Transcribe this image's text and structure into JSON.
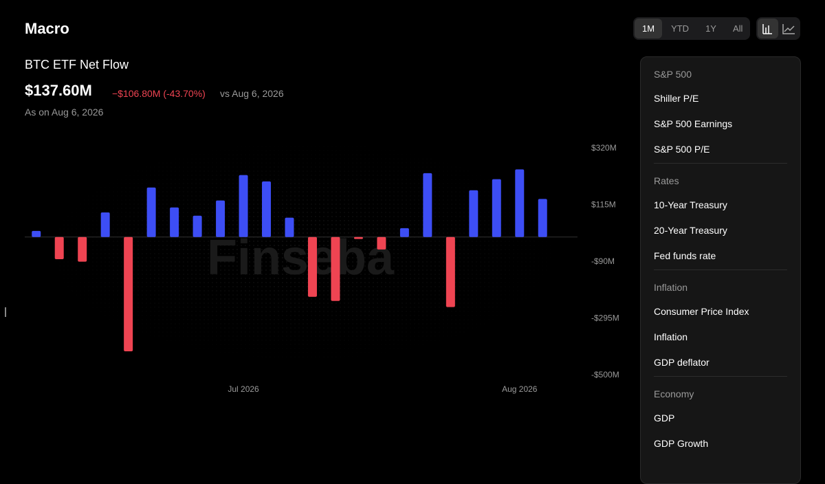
{
  "header": {
    "title": "Macro",
    "ranges": [
      "1M",
      "YTD",
      "1Y",
      "All"
    ]
  },
  "chart_data": {
    "type": "bar",
    "title": "BTC ETF Net Flow",
    "headline": "$137.60M",
    "change": "−$106.80M (-43.70%)",
    "comparison": "vs Aug 6, 2026",
    "as_of": "As on Aug 6, 2026",
    "watermark": "Finseba",
    "categories": [
      null,
      null,
      null,
      null,
      null,
      null,
      null,
      null,
      null,
      "Jul 2026",
      null,
      null,
      null,
      null,
      null,
      null,
      null,
      null,
      null,
      null,
      null,
      "Aug 2026",
      null
    ],
    "values": [
      22,
      -80,
      -89,
      89,
      -413,
      179,
      107,
      77,
      132,
      224,
      201,
      70,
      -216,
      -231,
      -7,
      -45,
      32,
      231,
      -253,
      169,
      209,
      244.4,
      137.6
    ],
    "positive_color": "#3d4ef5",
    "negative_color": "#ef4452",
    "ylim": [
      -500,
      320
    ],
    "yticks": [
      {
        "value": 320,
        "label": "$320M"
      },
      {
        "value": 115,
        "label": "$115M"
      },
      {
        "value": -90,
        "label": "-$90M"
      },
      {
        "value": -295,
        "label": "-$295M"
      },
      {
        "value": -500,
        "label": "-$500M"
      }
    ]
  },
  "sidebar": [
    {
      "title": "S&P 500",
      "items": [
        "Shiller P/E",
        "S&P 500 Earnings",
        "S&P 500 P/E"
      ]
    },
    {
      "title": "Rates",
      "items": [
        "10-Year Treasury",
        "20-Year Treasury",
        "Fed funds rate"
      ]
    },
    {
      "title": "Inflation",
      "items": [
        "Consumer Price Index",
        "Inflation",
        "GDP deflator"
      ]
    },
    {
      "title": "Economy",
      "items": [
        "GDP",
        "GDP Growth"
      ]
    }
  ]
}
